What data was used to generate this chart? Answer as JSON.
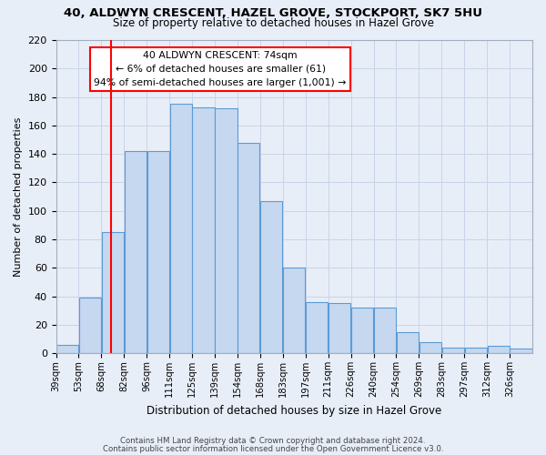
{
  "title": "40, ALDWYN CRESCENT, HAZEL GROVE, STOCKPORT, SK7 5HU",
  "subtitle": "Size of property relative to detached houses in Hazel Grove",
  "xlabel": "Distribution of detached houses by size in Hazel Grove",
  "ylabel": "Number of detached properties",
  "footnote1": "Contains HM Land Registry data © Crown copyright and database right 2024.",
  "footnote2": "Contains public sector information licensed under the Open Government Licence v3.0.",
  "categories": [
    "39sqm",
    "53sqm",
    "68sqm",
    "82sqm",
    "96sqm",
    "111sqm",
    "125sqm",
    "139sqm",
    "154sqm",
    "168sqm",
    "183sqm",
    "197sqm",
    "211sqm",
    "226sqm",
    "240sqm",
    "254sqm",
    "269sqm",
    "283sqm",
    "297sqm",
    "312sqm",
    "326sqm"
  ],
  "bar_values": [
    6,
    39,
    85,
    142,
    142,
    175,
    173,
    172,
    148,
    107,
    60,
    36,
    35,
    32,
    32,
    15,
    8,
    4,
    4,
    5,
    3
  ],
  "bar_color": "#c5d8f0",
  "bar_edge_color": "#5b9bd5",
  "property_line_x": 2,
  "annotation_text1": "40 ALDWYN CRESCENT: 74sqm",
  "annotation_text2": "← 6% of detached houses are smaller (61)",
  "annotation_text3": "94% of semi-detached houses are larger (1,001) →",
  "annotation_box_color": "white",
  "annotation_box_edge": "red",
  "vline_color": "red",
  "grid_color": "#c8d4e8",
  "background_color": "#e8eef8",
  "ylim": [
    0,
    220
  ],
  "yticks": [
    0,
    20,
    40,
    60,
    80,
    100,
    120,
    140,
    160,
    180,
    200,
    220
  ]
}
